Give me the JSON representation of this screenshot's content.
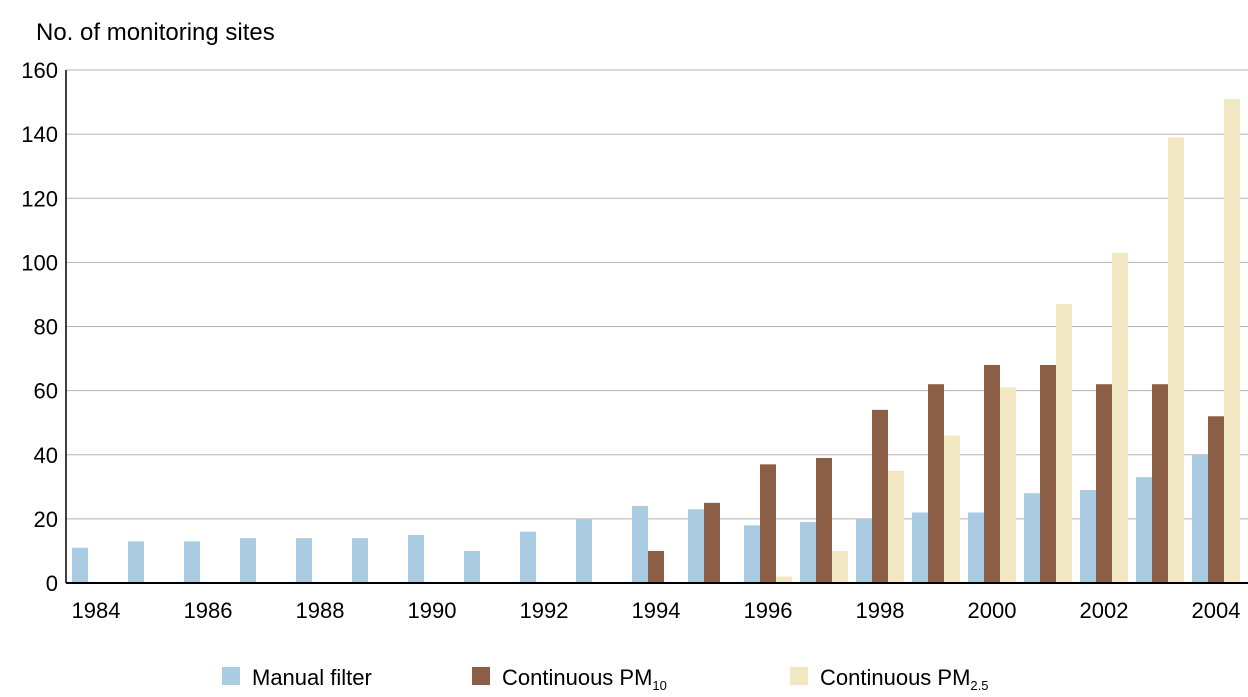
{
  "chart_data": {
    "type": "bar",
    "title": "",
    "ylabel": "No. of monitoring sites",
    "xlabel": "",
    "ylim": [
      0,
      160
    ],
    "yticks": [
      0,
      20,
      40,
      60,
      80,
      100,
      120,
      140,
      160
    ],
    "grid": true,
    "legend_position": "bottom",
    "categories": [
      "1984",
      "1985",
      "1986",
      "1987",
      "1988",
      "1989",
      "1990",
      "1991",
      "1992",
      "1993",
      "1994",
      "1995",
      "1996",
      "1997",
      "1998",
      "1999",
      "2000",
      "2001",
      "2002",
      "2003",
      "2004"
    ],
    "xtick_labels": [
      "1984",
      "1986",
      "1988",
      "1990",
      "1992",
      "1994",
      "1996",
      "1998",
      "2000",
      "2002",
      "2004"
    ],
    "series": [
      {
        "name": "Manual filter",
        "name_main": "Manual filter",
        "name_sub": "",
        "color": "#a9cce3",
        "values": [
          11,
          13,
          13,
          14,
          14,
          14,
          15,
          10,
          16,
          20,
          24,
          23,
          18,
          19,
          20,
          22,
          22,
          28,
          29,
          33,
          40
        ]
      },
      {
        "name": "Continuous PM10",
        "name_main": "Continuous PM",
        "name_sub": "10",
        "color": "#8b5e45",
        "values": [
          0,
          0,
          0,
          0,
          0,
          0,
          0,
          0,
          0,
          0,
          10,
          25,
          37,
          39,
          54,
          62,
          68,
          68,
          62,
          62,
          52
        ]
      },
      {
        "name": "Continuous PM2.5",
        "name_main": "Continuous PM",
        "name_sub": "2.5",
        "color": "#f2e8c4",
        "values": [
          0,
          0,
          0,
          0,
          0,
          0,
          0,
          0,
          0,
          0,
          0,
          0,
          2,
          10,
          35,
          46,
          61,
          87,
          103,
          139,
          151
        ]
      }
    ]
  }
}
